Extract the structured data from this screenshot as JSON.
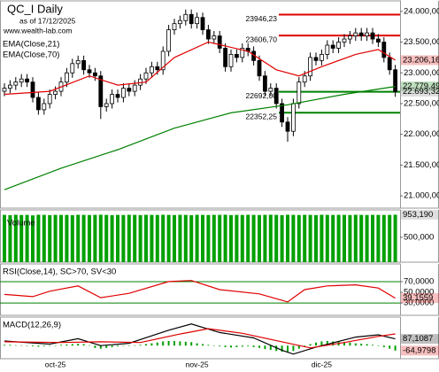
{
  "chart_data": [
    {
      "type": "candlestick",
      "title": "QC_I Daily",
      "subtitle": "as of 17/12/2025",
      "watermark": "www.wealth-lab.com",
      "categories": [
        null,
        null,
        null,
        null,
        null,
        null,
        null,
        null,
        null,
        "oct-25",
        null,
        null,
        null,
        null,
        null,
        null,
        null,
        null,
        null,
        null,
        null,
        null,
        null,
        null,
        null,
        null,
        null,
        null,
        null,
        null,
        null,
        null,
        null,
        null,
        "nov-25",
        null,
        null,
        null,
        null,
        null,
        null,
        null,
        null,
        null,
        null,
        null,
        null,
        null,
        null,
        null,
        null,
        null,
        null,
        null,
        null,
        null,
        "dic-25",
        null,
        null,
        null,
        null,
        null,
        null,
        null,
        null,
        null,
        null,
        null,
        null,
        null
      ],
      "open": [
        22700,
        22750,
        22800,
        22850,
        22900,
        22850,
        22600,
        22400,
        22500,
        22650,
        22700,
        22850,
        23000,
        23150,
        23200,
        23050,
        23000,
        22950,
        22450,
        22500,
        22650,
        22600,
        22750,
        22700,
        22800,
        22900,
        23000,
        23100,
        23050,
        23350,
        23700,
        23800,
        23850,
        23950,
        23800,
        23900,
        23700,
        23550,
        23600,
        23400,
        23100,
        23300,
        23250,
        23400,
        23350,
        23200,
        22950,
        22700,
        22750,
        22500,
        22200,
        22050,
        22500,
        22850,
        22950,
        23250,
        23200,
        23300,
        23450,
        23400,
        23500,
        23550,
        23600,
        23650,
        23600,
        23650,
        23550,
        23500,
        23250,
        23050
      ],
      "high": [
        22830,
        22880,
        22930,
        22980,
        22980,
        22930,
        22680,
        22580,
        22730,
        22780,
        22930,
        23080,
        23230,
        23280,
        23280,
        23130,
        23080,
        23030,
        22580,
        22730,
        22730,
        22830,
        22830,
        22880,
        22980,
        23080,
        23180,
        23180,
        23430,
        23780,
        23880,
        23930,
        24030,
        24030,
        23980,
        23980,
        23780,
        23680,
        23680,
        23480,
        23380,
        23380,
        23480,
        23480,
        23430,
        23280,
        23030,
        22830,
        22830,
        22580,
        22280,
        22580,
        22930,
        23030,
        23330,
        23330,
        23380,
        23530,
        23530,
        23580,
        23630,
        23680,
        23730,
        23730,
        23730,
        23730,
        23630,
        23580,
        23330,
        23130
      ],
      "low": [
        22620,
        22670,
        22720,
        22770,
        22770,
        22520,
        22320,
        22320,
        22420,
        22570,
        22620,
        22770,
        22920,
        23070,
        22970,
        22920,
        22870,
        22250,
        22370,
        22420,
        22520,
        22520,
        22620,
        22620,
        22720,
        22820,
        22920,
        22970,
        22970,
        23270,
        23620,
        23720,
        23770,
        23720,
        23720,
        23620,
        23470,
        23470,
        23320,
        23020,
        23020,
        23170,
        23170,
        23270,
        23120,
        22870,
        22620,
        22620,
        22420,
        22120,
        21880,
        21970,
        22420,
        22770,
        22870,
        23120,
        23120,
        23220,
        23320,
        23320,
        23420,
        23470,
        23520,
        23520,
        23520,
        23470,
        23420,
        23170,
        22970,
        22610
      ],
      "close": [
        22750,
        22800,
        22850,
        22900,
        22850,
        22600,
        22400,
        22500,
        22650,
        22700,
        22850,
        23000,
        23150,
        23200,
        23050,
        23000,
        22950,
        22450,
        22500,
        22650,
        22600,
        22750,
        22700,
        22800,
        22900,
        23000,
        23100,
        23050,
        23350,
        23700,
        23800,
        23850,
        23950,
        23800,
        23900,
        23700,
        23550,
        23600,
        23400,
        23100,
        23300,
        23250,
        23400,
        23350,
        23200,
        22950,
        22700,
        22750,
        22500,
        22200,
        22050,
        22500,
        22850,
        22950,
        23250,
        23200,
        23300,
        23450,
        23400,
        23500,
        23550,
        23600,
        23650,
        23600,
        23650,
        23550,
        23500,
        23250,
        23050,
        22693.32
      ],
      "up_color": "#ffffff",
      "down_color": "#000000",
      "series": [
        {
          "name": "EMA(Close,21)",
          "color": "#e00000",
          "x": [
            0,
            8,
            15,
            20,
            25,
            30,
            36,
            43,
            48,
            52,
            56,
            62,
            66,
            69
          ],
          "values": [
            22650,
            22700,
            22950,
            22800,
            22850,
            23250,
            23500,
            23350,
            23050,
            22950,
            23100,
            23300,
            23380,
            23206.16
          ]
        },
        {
          "name": "EMA(Close,70)",
          "color": "#008000",
          "x": [
            0,
            10,
            20,
            30,
            40,
            50,
            60,
            69
          ],
          "values": [
            21100,
            21450,
            21750,
            22100,
            22350,
            22480,
            22650,
            22779.49
          ]
        }
      ],
      "levels": {
        "values": [
          23946.23,
          23606.7,
          22692.0,
          22352.25
        ],
        "value_labels": [
          "23946,23",
          "23606,70",
          "22692,00",
          "22352,25"
        ],
        "colors": [
          "#e00000",
          "#e00000",
          "#008000",
          "#008000"
        ]
      },
      "last": {
        "values": [
          23206.16,
          22779.49,
          22693.32
        ],
        "value_labels": [
          "23.206,16",
          "22.779,49",
          "22.693,32"
        ],
        "colors": [
          "#e00000",
          "#008000",
          "#808080"
        ]
      },
      "ylim": [
        20800,
        24170
      ],
      "yticks": [
        {
          "value": 21000,
          "label": "21.000,00"
        },
        {
          "value": 21500,
          "label": "21.500,00"
        },
        {
          "value": 22000,
          "label": "22.000,00"
        },
        {
          "value": 22500,
          "label": "22.500,00"
        },
        {
          "value": 23000,
          "label": "23.000,00"
        },
        {
          "value": 23500,
          "label": "23.500,00"
        },
        {
          "value": 24000,
          "label": "24.000,00"
        }
      ]
    },
    {
      "type": "bar",
      "title": "Volume",
      "color": "#00a000",
      "values": [
        950000,
        945000,
        952000,
        948000,
        950000,
        940000,
        953000,
        950000,
        946000,
        951000,
        949000,
        950000,
        944000,
        952000,
        950000,
        947000,
        951000,
        953000,
        950000,
        945000,
        950000,
        948000,
        952000,
        950000,
        946000,
        951000,
        950000,
        949000,
        953000,
        950000,
        947000,
        951000,
        950000,
        944000,
        952000,
        950000,
        948000,
        951000,
        950000,
        953000,
        946000,
        950000,
        949000,
        952000,
        950000,
        947000,
        951000,
        953000,
        950000,
        945000,
        953000,
        950000,
        948000,
        951000,
        950000,
        946000,
        952000,
        950000,
        949000,
        951000,
        950000,
        947000,
        952000,
        950000,
        948000,
        951000,
        950000,
        949000,
        950000,
        953190
      ],
      "last": {
        "values": [
          953190
        ],
        "value_labels": [
          "953,190"
        ],
        "colors": [
          "#808080"
        ]
      },
      "ylim": [
        0,
        1050000
      ],
      "yticks": [
        {
          "value": 500000,
          "label": "500,000"
        }
      ]
    },
    {
      "type": "line",
      "title": "RSI(Close,14), SC>70, SV<30",
      "series": [
        {
          "color": "#e00000",
          "x": [
            0,
            5,
            8,
            13,
            17,
            22,
            29,
            33,
            38,
            45,
            49,
            50,
            53,
            57,
            62,
            66,
            69
          ],
          "values": [
            46,
            42,
            52,
            62,
            40,
            48,
            70,
            72,
            55,
            47,
            35,
            32,
            55,
            62,
            64,
            58,
            39.1559
          ]
        }
      ],
      "levels": {
        "values": [
          70,
          30
        ],
        "colors": [
          "#008000",
          "#008000"
        ]
      },
      "last": {
        "values": [
          39.1559
        ],
        "value_labels": [
          "39,1559"
        ],
        "colors": [
          "#e00000"
        ]
      },
      "ylim": [
        7,
        103
      ],
      "yticks": [
        {
          "value": 70,
          "label": "70,0000"
        },
        {
          "value": 50,
          "label": "50,0000"
        },
        {
          "value": 30,
          "label": "30,0000"
        }
      ]
    },
    {
      "type": "line",
      "title": "MACD(12,26,9)",
      "series": [
        {
          "color": "#000000",
          "x": [
            0,
            8,
            13,
            17,
            22,
            29,
            33,
            38,
            44,
            49,
            51,
            55,
            62,
            66,
            69
          ],
          "values": [
            60,
            20,
            90,
            0,
            30,
            200,
            280,
            170,
            100,
            -60,
            -110,
            -20,
            110,
            140,
            87.1087
          ]
        },
        {
          "color": "#e00000",
          "x": [
            0,
            10,
            17,
            24,
            31,
            36,
            42,
            49,
            54,
            60,
            66,
            69
          ],
          "values": [
            50,
            40,
            50,
            40,
            150,
            220,
            160,
            50,
            -30,
            40,
            120,
            152
          ]
        }
      ],
      "histogram": {
        "color": "#00a000",
        "values": [
          10,
          10,
          5,
          5,
          -5,
          -10,
          -15,
          -10,
          -5,
          0,
          10,
          15,
          20,
          25,
          20,
          5,
          -30,
          -40,
          -30,
          -20,
          -10,
          -5,
          0,
          5,
          10,
          20,
          30,
          40,
          55,
          60,
          60,
          55,
          50,
          45,
          30,
          20,
          10,
          0,
          -10,
          -20,
          -25,
          -20,
          -15,
          -10,
          -20,
          -30,
          -45,
          -55,
          -70,
          -80,
          -90,
          -70,
          -40,
          -10,
          20,
          40,
          55,
          60,
          55,
          50,
          45,
          40,
          30,
          25,
          20,
          10,
          0,
          -20,
          -40,
          -64.9798
        ]
      },
      "last": {
        "values": [
          87.1087,
          -64.9798
        ],
        "value_labels": [
          "87,1087",
          "-64,9798"
        ],
        "colors": [
          "#000000",
          "#e00000"
        ]
      },
      "ylim": [
        -170,
        370
      ]
    }
  ]
}
